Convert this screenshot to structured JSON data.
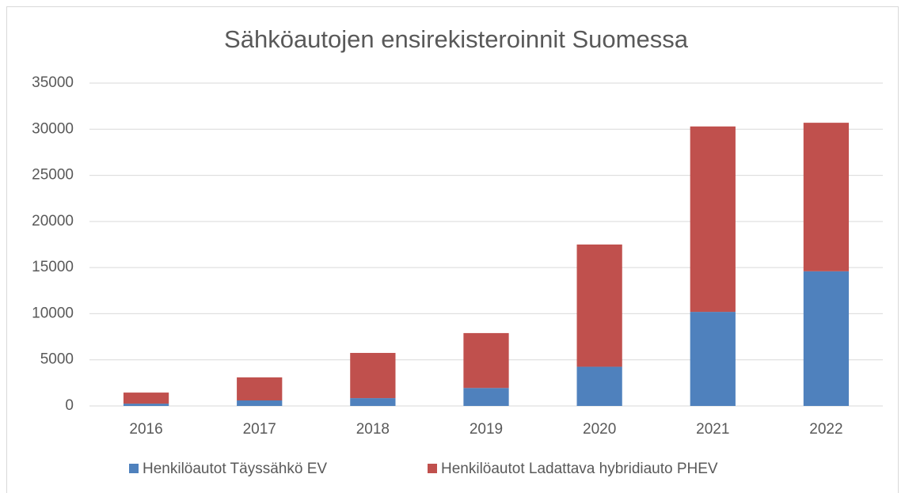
{
  "chart_data": {
    "type": "stacked_bar",
    "title": "Sähköautojen ensirekisteroinnit Suomessa",
    "categories": [
      "2016",
      "2017",
      "2018",
      "2019",
      "2020",
      "2021",
      "2022"
    ],
    "series": [
      {
        "name": "Henkilöautot Täyssähkö EV",
        "color": "#4f81bd",
        "values": [
          250,
          600,
          850,
          1950,
          4250,
          10200,
          14600
        ]
      },
      {
        "name": "Henkilöautot Ladattava hybridiauto PHEV",
        "color": "#c0504d",
        "values": [
          1200,
          2500,
          4900,
          5950,
          13250,
          20100,
          16100
        ]
      }
    ],
    "ylim": [
      0,
      35000
    ],
    "yticks": [
      0,
      5000,
      10000,
      15000,
      20000,
      25000,
      30000,
      35000
    ],
    "grid": true,
    "legend": "bottom"
  }
}
